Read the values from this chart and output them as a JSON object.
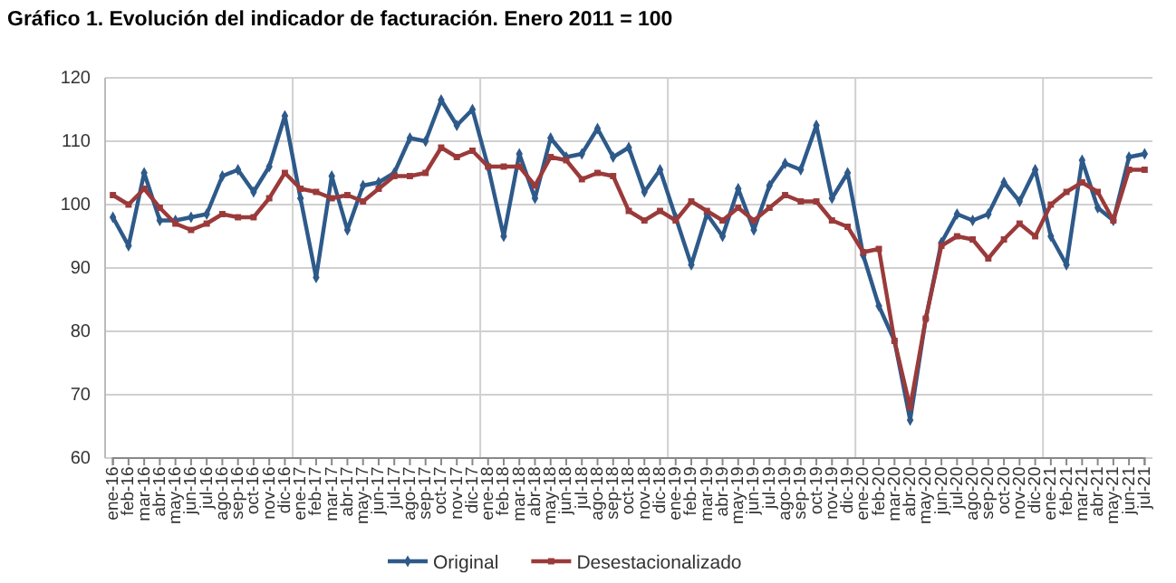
{
  "chart_data": {
    "type": "line",
    "title": "Gráfico 1. Evolución del indicador de facturación. Enero 2011 = 100",
    "categories": [
      "ene-16",
      "feb-16",
      "mar-16",
      "abr-16",
      "may-16",
      "jun-16",
      "jul-16",
      "ago-16",
      "sep-16",
      "oct-16",
      "nov-16",
      "dic-16",
      "ene-17",
      "feb-17",
      "mar-17",
      "abr-17",
      "may-17",
      "jun-17",
      "jul-17",
      "ago-17",
      "sep-17",
      "oct-17",
      "nov-17",
      "dic-17",
      "ene-18",
      "feb-18",
      "mar-18",
      "abr-18",
      "may-18",
      "jun-18",
      "jul-18",
      "ago-18",
      "sep-18",
      "oct-18",
      "nov-18",
      "dic-18",
      "ene-19",
      "feb-19",
      "mar-19",
      "abr-19",
      "may-19",
      "jun-19",
      "jul-19",
      "ago-19",
      "sep-19",
      "oct-19",
      "nov-19",
      "dic-19",
      "ene-20",
      "feb-20",
      "mar-20",
      "abr-20",
      "may-20",
      "jun-20",
      "jul-20",
      "ago-20",
      "sep-20",
      "oct-20",
      "nov-20",
      "dic-20",
      "ene-21",
      "feb-21",
      "mar-21",
      "abr-21",
      "may-21",
      "jun-21",
      "jul-21"
    ],
    "series": [
      {
        "name": "Original",
        "color": "#2e5a8a",
        "marker": "diamond",
        "values": [
          98,
          93.5,
          105,
          97.5,
          97.5,
          98,
          98.5,
          104.5,
          105.5,
          102,
          106,
          114,
          101,
          88.5,
          104.5,
          96,
          103,
          103.5,
          105,
          110.5,
          110,
          116.5,
          112.5,
          115,
          106,
          95,
          108,
          101,
          110.5,
          107.5,
          108,
          112,
          107.5,
          109,
          102,
          105.5,
          98,
          90.5,
          98.5,
          95,
          102.5,
          96,
          103,
          106.5,
          105.5,
          112.5,
          101,
          105,
          92,
          84,
          78.5,
          66,
          82,
          94,
          98.5,
          97.5,
          98.5,
          103.5,
          100.5,
          105.5,
          95,
          90.5,
          107,
          99.5,
          97.5,
          107.5,
          108
        ]
      },
      {
        "name": "Desestacionalizado",
        "color": "#9b3a3a",
        "marker": "square",
        "values": [
          101.5,
          100,
          102.5,
          99.5,
          97,
          96,
          97,
          98.5,
          98,
          98,
          101,
          105,
          102.5,
          102,
          101,
          101.5,
          100.5,
          102.5,
          104.5,
          104.5,
          105,
          109,
          107.5,
          108.5,
          106,
          106,
          106,
          103,
          107.5,
          107,
          104,
          105,
          104.5,
          99,
          97.5,
          99,
          97.5,
          100.5,
          99,
          97.5,
          99.5,
          97.5,
          99.5,
          101.5,
          100.5,
          100.5,
          97.5,
          96.5,
          92.5,
          93,
          78.5,
          68,
          82,
          93.5,
          95,
          94.5,
          91.5,
          94.5,
          97,
          95,
          100,
          102,
          103.5,
          102,
          97.5,
          105.5,
          105.5
        ]
      }
    ],
    "ylim": [
      60,
      120
    ],
    "yticks": [
      60,
      70,
      80,
      90,
      100,
      110,
      120
    ],
    "grid": true,
    "legend": "bottom",
    "line_style": "solid"
  }
}
